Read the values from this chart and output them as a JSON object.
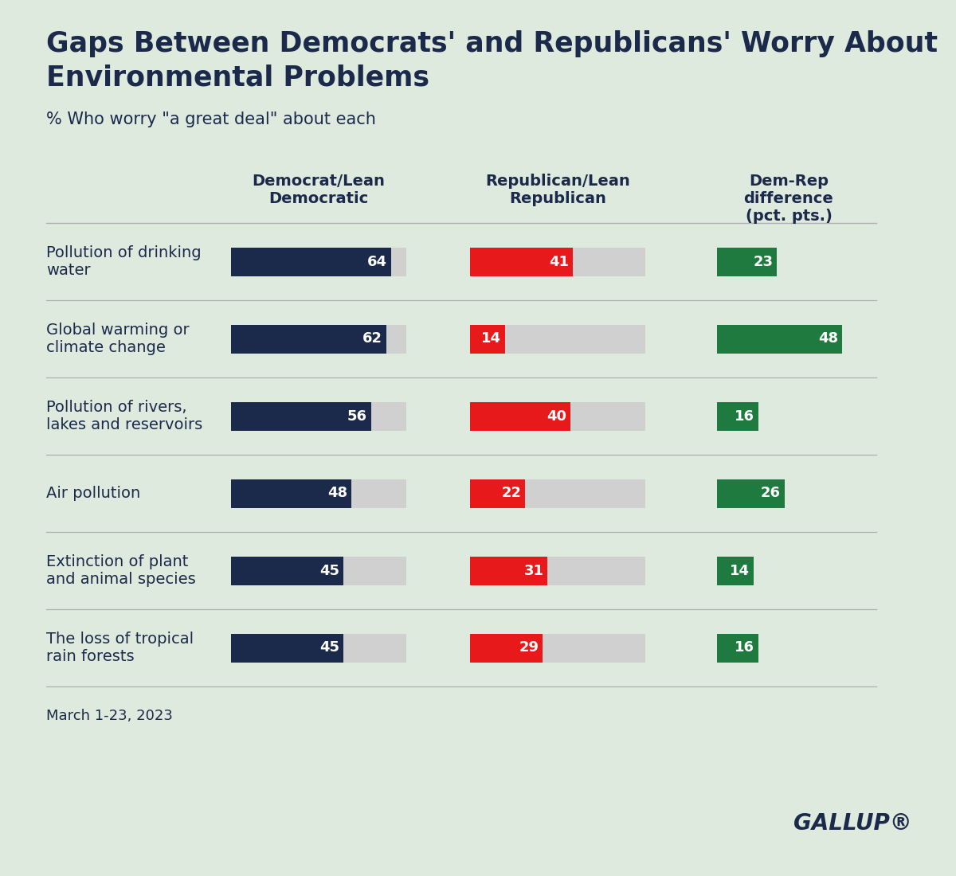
{
  "title_line1": "Gaps Between Democrats' and Republicans' Worry About",
  "title_line2": "Environmental Problems",
  "subtitle": "% Who worry \"a great deal\" about each",
  "date_note": "March 1-23, 2023",
  "gallup_text": "GALLUP®",
  "background_color": "#dfeadf",
  "categories": [
    "Pollution of drinking\nwater",
    "Global warming or\nclimate change",
    "Pollution of rivers,\nlakes and reservoirs",
    "Air pollution",
    "Extinction of plant\nand animal species",
    "The loss of tropical\nrain forests"
  ],
  "dem_values": [
    64,
    62,
    56,
    48,
    45,
    45
  ],
  "rep_values": [
    41,
    14,
    40,
    22,
    31,
    29
  ],
  "diff_values": [
    23,
    48,
    16,
    26,
    14,
    16
  ],
  "dem_color": "#1b2a4a",
  "rep_color": "#e8191a",
  "diff_color": "#1e7a3e",
  "bar_bg_color": "#d0d0d0",
  "dem_max": 70,
  "rep_max": 70,
  "diff_max": 55,
  "col_headers": [
    "Democrat/Lean\nDemocratic",
    "Republican/Lean\nRepublican",
    "Dem-Rep\ndifference\n(pct. pts.)"
  ],
  "text_color": "#1b2a4a",
  "separator_color": "#b0b0b0"
}
